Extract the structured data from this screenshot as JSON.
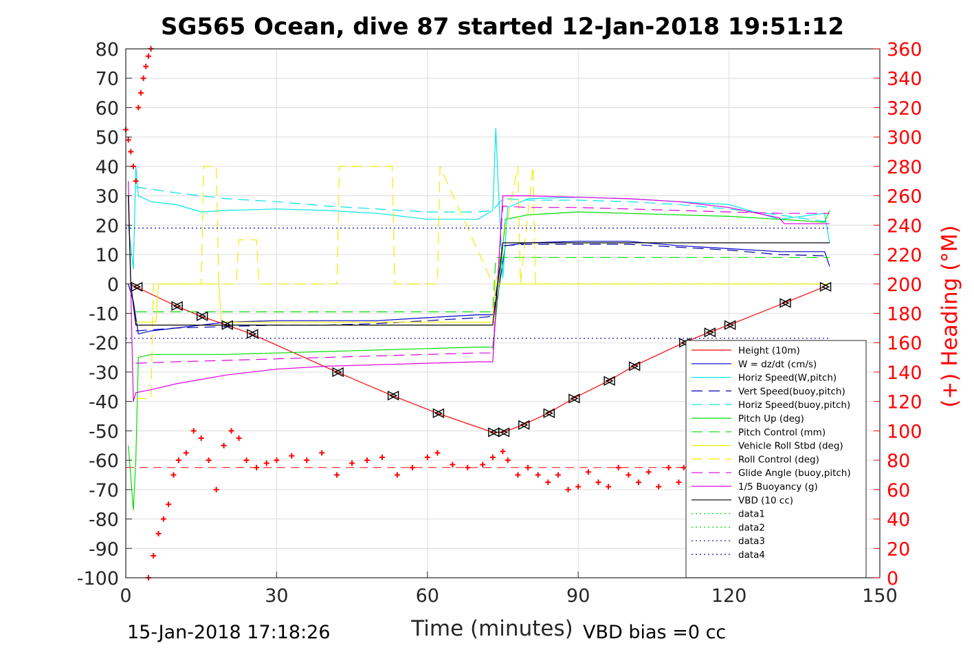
{
  "chart_data": {
    "type": "line",
    "title": "SG565 Ocean, dive 87 started 12-Jan-2018 19:51:12",
    "xlabel": "Time (minutes)",
    "ylabel": "",
    "ylabel_right": "(+) Heading (°M)",
    "xlim": [
      0,
      150
    ],
    "ylim": [
      -100,
      80
    ],
    "ylim_right": [
      0,
      360
    ],
    "x_ticks": [
      0,
      30,
      60,
      90,
      120,
      150
    ],
    "y_ticks": [
      80,
      70,
      60,
      50,
      40,
      30,
      20,
      10,
      0,
      -10,
      -20,
      -30,
      -40,
      -50,
      -60,
      -70,
      -80,
      -90,
      -100
    ],
    "y_ticks_right": [
      360,
      340,
      320,
      300,
      280,
      260,
      240,
      220,
      200,
      180,
      160,
      140,
      120,
      100,
      80,
      60,
      40,
      20,
      0
    ],
    "grid": true,
    "legend_position": "bottom-right",
    "footer_left": "15-Jan-2018 17:18:26",
    "footer_right": "VBD bias =0 cc",
    "colors": {
      "red": "#ff0000",
      "blue": "#0000cc",
      "cyan": "#00e5e5",
      "navy": "#0000aa",
      "green": "#00dd00",
      "yellow": "#eeee00",
      "magenta": "#dd00dd",
      "black": "#000000"
    },
    "series": [
      {
        "name": "Height (10m)",
        "style": "solid",
        "color": "#ff0000",
        "x": [
          1,
          2,
          10,
          15,
          20,
          25,
          42,
          53,
          62,
          73,
          75,
          79,
          84,
          89,
          96,
          101,
          111,
          116,
          120,
          131,
          139
        ],
        "y": [
          0,
          -1,
          -7.5,
          -11,
          -14,
          -17,
          -30,
          -38,
          -44,
          -50.5,
          -50.5,
          -48,
          -44,
          -39,
          -33,
          -28,
          -20,
          -16.5,
          -14,
          -6.5,
          -1
        ]
      },
      {
        "name": "W = dz/dt (cm/s)",
        "style": "solid",
        "color": "#0000cc",
        "x": [
          0.5,
          1.5,
          2.5,
          5,
          10,
          20,
          30,
          40,
          50,
          60,
          70,
          73,
          74,
          75.5,
          80,
          90,
          100,
          110,
          120,
          130,
          139,
          140
        ],
        "y": [
          0,
          -6,
          -17,
          -16,
          -15,
          -13,
          -12.5,
          -12.5,
          -12.5,
          -11.5,
          -10.5,
          -10.5,
          -4,
          13,
          14,
          14.5,
          14.5,
          13,
          12,
          11,
          11,
          6
        ]
      },
      {
        "name": "Horiz Speed(W,pitch)",
        "style": "solid",
        "color": "#00e5e5",
        "x": [
          0.5,
          1.5,
          2,
          2.5,
          5,
          10,
          15,
          20,
          30,
          40,
          50,
          60,
          70,
          73,
          73.6,
          74.2,
          75,
          76,
          80,
          90,
          100,
          110,
          120,
          130,
          139,
          140
        ],
        "y": [
          20,
          5,
          40,
          30,
          28,
          27,
          24.5,
          25,
          25.5,
          25,
          24,
          22,
          22,
          25,
          53,
          30,
          2,
          26,
          29,
          29.5,
          29,
          28,
          27,
          22,
          24,
          14
        ]
      },
      {
        "name": "Vert Speed(buoy,pitch)",
        "style": "dashed",
        "color": "#0000aa",
        "x": [
          2,
          10,
          20,
          30,
          40,
          50,
          60,
          70,
          73,
          75,
          80,
          90,
          100,
          110,
          120,
          130,
          140
        ],
        "y": [
          -16,
          -15,
          -14.5,
          -14,
          -14,
          -13.5,
          -12.5,
          -11.5,
          -11,
          13,
          13.5,
          13.5,
          13.5,
          12.5,
          11.5,
          10,
          9.5
        ]
      },
      {
        "name": "Horiz Speed(buoy,pitch)",
        "style": "dashed",
        "color": "#00e5e5",
        "x": [
          2,
          10,
          20,
          30,
          40,
          50,
          60,
          70,
          73,
          75,
          80,
          90,
          100,
          110,
          120,
          130,
          140
        ],
        "y": [
          33,
          31,
          29,
          28,
          26.5,
          25.5,
          24.5,
          24.5,
          25,
          29,
          28.5,
          28.5,
          28,
          27,
          25.5,
          23.5,
          21
        ]
      },
      {
        "name": "Pitch Up (deg)",
        "style": "solid",
        "color": "#00dd00",
        "x": [
          0.5,
          1.5,
          2,
          2.5,
          5,
          10,
          20,
          30,
          40,
          50,
          60,
          70,
          73,
          74,
          75.5,
          80,
          90,
          100,
          110,
          120,
          130,
          139,
          140
        ],
        "y": [
          -55,
          -77,
          -60,
          -25,
          -24,
          -24,
          -24,
          -23.5,
          -23,
          -22.5,
          -22,
          -21.5,
          -21.5,
          -5,
          22,
          23.5,
          24.5,
          24,
          23.5,
          23,
          22,
          21,
          25
        ]
      },
      {
        "name": "Pitch Control (mm)",
        "style": "dashed",
        "color": "#00dd00",
        "x": [
          2,
          73,
          73.6,
          140
        ],
        "y": [
          -9.5,
          -9.5,
          9,
          9
        ]
      },
      {
        "name": "Vehicle Roll Stbd (deg)",
        "style": "solid",
        "color": "#eeee00",
        "x": [
          2,
          6,
          6.5,
          18.5,
          19,
          73,
          73.5,
          140
        ],
        "y": [
          -13,
          -13,
          0,
          0,
          -13,
          -13,
          0,
          0
        ]
      },
      {
        "name": "Roll Control (deg)",
        "style": "dashed",
        "color": "#eeee00",
        "x": [
          2,
          5,
          5.5,
          15,
          15.5,
          18,
          18.5,
          22,
          22.5,
          26,
          26.5,
          42,
          42.5,
          53,
          53.5,
          62,
          62.5,
          73,
          73.5,
          78,
          78.5,
          81,
          81.5,
          140
        ],
        "y": [
          -39,
          -39,
          0,
          0,
          40,
          40,
          0,
          0,
          15,
          15,
          0,
          0,
          40,
          40,
          0,
          0,
          40,
          0,
          0,
          40,
          0,
          40,
          0,
          0
        ]
      },
      {
        "name": "Glide Angle (buoy,pitch)",
        "style": "dashed",
        "color": "#dd00dd",
        "x": [
          2,
          10,
          20,
          30,
          40,
          50,
          60,
          70,
          73,
          75,
          80,
          90,
          100,
          110,
          120,
          130,
          140
        ],
        "y": [
          -27,
          -26.5,
          -26,
          -25.5,
          -25,
          -24.5,
          -24,
          -23.5,
          -23.5,
          26.5,
          26,
          26,
          25.5,
          25,
          24.5,
          24,
          24
        ]
      },
      {
        "name": "1/5 Buoyancy (g)",
        "style": "solid",
        "color": "#dd00dd",
        "x": [
          0.5,
          1.5,
          2,
          5,
          10,
          20,
          30,
          40,
          50,
          60,
          70,
          73,
          75,
          80,
          90,
          100,
          110,
          120,
          130,
          131,
          140
        ],
        "y": [
          35,
          -40,
          -37,
          -36,
          -34,
          -31,
          -29,
          -28,
          -27.5,
          -27,
          -26.5,
          -26.5,
          30,
          30,
          29.5,
          29,
          28,
          26,
          22.5,
          20.5,
          20.5
        ]
      },
      {
        "name": "VBD (10 cc)",
        "style": "solid",
        "color": "#000000",
        "x": [
          0.5,
          1,
          2,
          73,
          74,
          75,
          140
        ],
        "y": [
          30,
          0,
          -14,
          -14,
          0,
          14,
          14
        ]
      },
      {
        "name": "data1",
        "style": "dotted",
        "color": "#00dd00",
        "x": [],
        "y": []
      },
      {
        "name": "data2",
        "style": "dotted",
        "color": "#00dd00",
        "x": [],
        "y": []
      },
      {
        "name": "data3",
        "style": "dotted",
        "color": "#0000aa",
        "x": [
          0,
          140
        ],
        "y": [
          19,
          19
        ]
      },
      {
        "name": "data4",
        "style": "dotted",
        "color": "#0000aa",
        "x": [
          0,
          140
        ],
        "y": [
          -18.5,
          -18.5
        ]
      }
    ],
    "reference_line": {
      "y": -62.5,
      "style": "dashed",
      "color": "#ff0000"
    },
    "markers_right": [
      2,
      10,
      15,
      20,
      25,
      42,
      53,
      62,
      73,
      75,
      79,
      84,
      89,
      96,
      101,
      111,
      116,
      120,
      131,
      139
    ],
    "heading_series": {
      "axis": "right",
      "color": "#ff0000",
      "marker": "+",
      "x": [
        0,
        0.5,
        1,
        1.5,
        2,
        2.5,
        3,
        3.5,
        4,
        4.5,
        5,
        4.5,
        5.5,
        6.5,
        7.5,
        8.5,
        9.5,
        10.5,
        12,
        13.5,
        15,
        16.5,
        18,
        19.5,
        21,
        22.5,
        24,
        26,
        28,
        30,
        33,
        36,
        39,
        42,
        45,
        48,
        51,
        54,
        57,
        60,
        62,
        65,
        68,
        71,
        73,
        75,
        76,
        78,
        80,
        82,
        84,
        86,
        88,
        90,
        92,
        94,
        96,
        98,
        100,
        102,
        104,
        106,
        108,
        110,
        111,
        112
      ],
      "y": [
        305,
        298,
        290,
        280,
        270,
        320,
        330,
        340,
        348,
        355,
        360,
        0,
        15,
        30,
        40,
        50,
        70,
        80,
        85,
        100,
        95,
        80,
        60,
        90,
        100,
        95,
        80,
        75,
        78,
        80,
        83,
        80,
        85,
        70,
        78,
        80,
        82,
        70,
        75,
        82,
        85,
        77,
        75,
        77,
        82,
        86,
        80,
        70,
        75,
        70,
        65,
        70,
        60,
        62,
        72,
        65,
        62,
        75,
        70,
        65,
        72,
        62,
        75,
        65,
        75,
        70
      ]
    }
  }
}
